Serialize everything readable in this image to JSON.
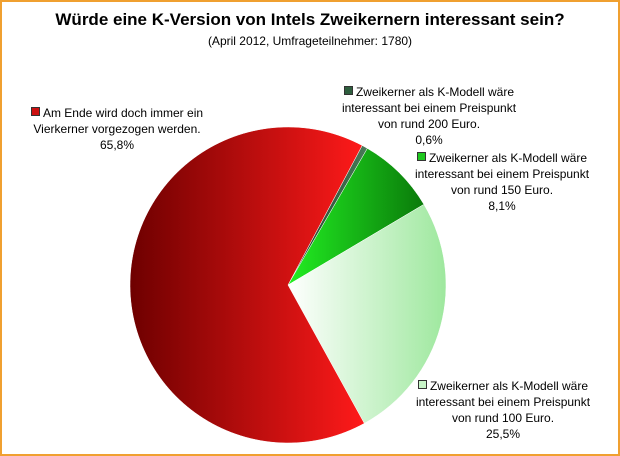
{
  "chart_data": {
    "type": "pie",
    "title": "Würde eine K-Version von Intels Zweikernern interessant sein?",
    "subtitle": "(April 2012, Umfrageteilnehmer: 1780)",
    "slices": [
      {
        "label": "Zweikerner als K-Modell wäre interessant bei einem Preispunkt von rund 200 Euro.",
        "value": 0.6,
        "pct_label": "0,6%",
        "color": "#2e5e3e"
      },
      {
        "label": "Zweikerner als K-Modell wäre interessant bei einem Preispunkt von rund 150 Euro.",
        "value": 8.1,
        "pct_label": "8,1%",
        "color": "#1ec81e"
      },
      {
        "label": "Zweikerner als K-Modell wäre interessant bei einem Preispunkt von rund 100 Euro.",
        "value": 25.5,
        "pct_label": "25,5%",
        "color": "#c8f5c8"
      },
      {
        "label": "Am Ende wird doch immer ein Vierkerner vorgezogen werden.",
        "value": 65.8,
        "pct_label": "65,8%",
        "color": "#cc1010"
      }
    ]
  }
}
